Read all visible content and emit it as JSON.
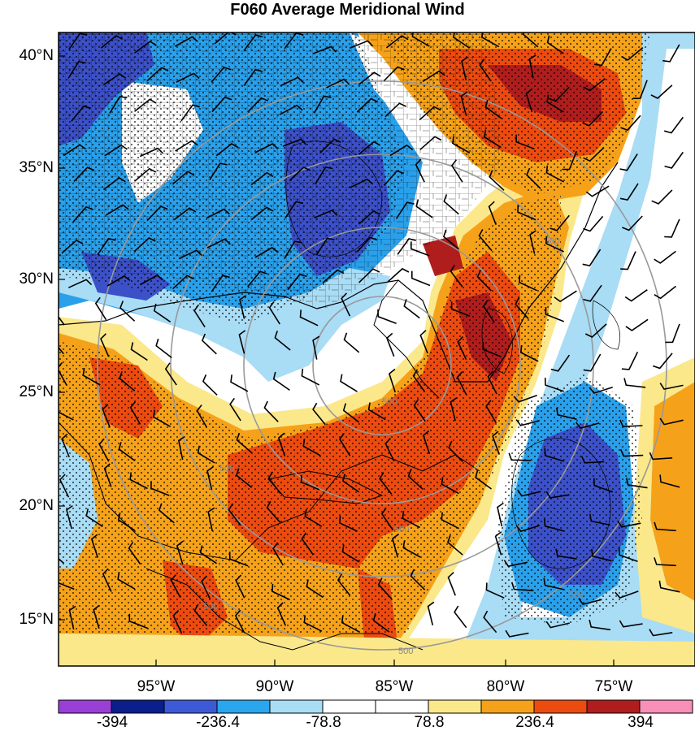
{
  "title": "F060 Average Meridional Wind",
  "latitudes": [
    "40°N",
    "35°N",
    "30°N",
    "25°N",
    "20°N",
    "15°N"
  ],
  "longitudes": [
    "95°W",
    "90°W",
    "85°W",
    "80°W",
    "75°W"
  ],
  "colorbar": {
    "labels": [
      "-394",
      "-236.4",
      "-78.8",
      "78.8",
      "236.4",
      "394"
    ],
    "colors": [
      "#9a3fd6",
      "#0a1e8c",
      "#3d5ad6",
      "#2aa6ee",
      "#a9dcf5",
      "#ffffff",
      "#ffffff",
      "#fbe88a",
      "#f5a21a",
      "#ec4b10",
      "#b01d1d",
      "#f78fb8"
    ]
  },
  "map": {
    "ring_label": "500",
    "palette": {
      "deep_blue": "#3c50c8",
      "blue": "#2aa0ea",
      "light_blue": "#a9dcf5",
      "white": "#ffffff",
      "yellow": "#fbe88a",
      "orange": "#f5a21a",
      "red_orange": "#ec4b10",
      "dark_red": "#b01d1d"
    }
  }
}
